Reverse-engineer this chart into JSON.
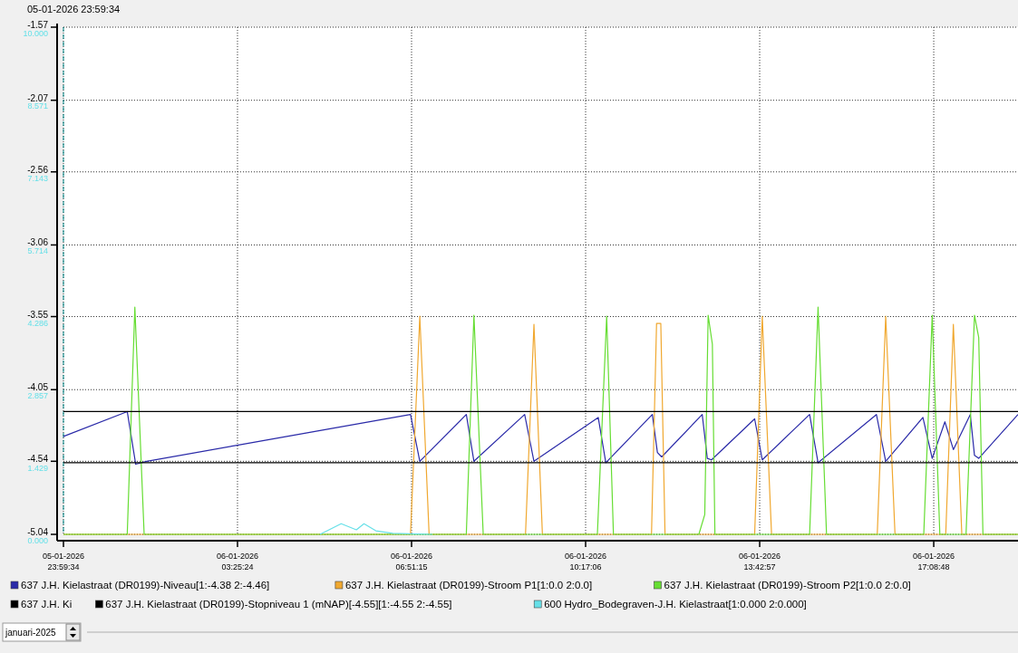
{
  "chart_data": {
    "type": "line",
    "xlim": [
      "2026-01-05T23:59:34",
      "2026-01-06T18:48:27"
    ],
    "xticks": [
      {
        "value": "2026-01-05T23:59:34",
        "label": "05-01-2026\n23:59:34"
      },
      {
        "value": "2026-01-06T03:25:24",
        "label": "06-01-2026\n03:25:24"
      },
      {
        "value": "2026-01-06T06:51:15",
        "label": "06-01-2026\n06:51:15"
      },
      {
        "value": "2026-01-06T10:17:06",
        "label": "06-01-2026\n10:17:06"
      },
      {
        "value": "2026-01-06T13:42:57",
        "label": "06-01-2026\n13:42:57"
      },
      {
        "value": "2026-01-06T17:08:48",
        "label": "06-01-2026\n17:08:48"
      }
    ],
    "ylim": [
      -5.04,
      -1.57
    ],
    "yticks": [
      -5.04,
      -4.54,
      -4.05,
      -3.55,
      -3.06,
      -2.56,
      -2.07,
      -1.57
    ],
    "y2lim": [
      0,
      10
    ],
    "y2ticks": [
      {
        "value": 0,
        "label": "0.000"
      },
      {
        "value": 1.429,
        "label": "1.429"
      },
      {
        "value": 2.857,
        "label": "2.857"
      },
      {
        "value": 4.286,
        "label": "4.286"
      },
      {
        "value": 5.714,
        "label": "5.714"
      },
      {
        "value": 7.143,
        "label": "7.143"
      },
      {
        "value": 8.571,
        "label": "8.571"
      },
      {
        "value": 10,
        "label": "10.000"
      }
    ],
    "grid": true,
    "legend": "bottom",
    "ref_lines": [
      {
        "axis": "x",
        "value": "2026-01-05T23:59:34",
        "label": "05-01-2026 23:59:34",
        "color": "#008b8b",
        "line_style": "dashed"
      }
    ],
    "annotations": [
      "januari-2025"
    ],
    "series": [
      {
        "name": "637 J.H. Kielastraat (DR0199)-Niveau[1:-4.38 2:-4.46]",
        "color": "#2a2aa8",
        "x": [
          "2026-01-05T23:59:34",
          "2026-01-06T01:15:00",
          "2026-01-06T01:25:00",
          "2026-01-06T01:38:00",
          "2026-01-06T03:25:00",
          "2026-01-06T06:50:00",
          "2026-01-06T07:01:00",
          "2026-01-06T07:56:00",
          "2026-01-06T08:05:00",
          "2026-01-06T09:05:00",
          "2026-01-06T09:16:00",
          "2026-01-06T10:32:00",
          "2026-01-06T10:41:00",
          "2026-01-06T11:36:00",
          "2026-01-06T11:42:00",
          "2026-01-06T11:47:00",
          "2026-01-06T12:35:00",
          "2026-01-06T12:41:00",
          "2026-01-06T12:46:00",
          "2026-01-06T13:37:00",
          "2026-01-06T13:46:00",
          "2026-01-06T14:42:00",
          "2026-01-06T14:52:00",
          "2026-01-06T16:01:00",
          "2026-01-06T16:12:00",
          "2026-01-06T16:56:00",
          "2026-01-06T17:07:00",
          "2026-01-06T17:22:00",
          "2026-01-06T17:32:00",
          "2026-01-06T17:52:00",
          "2026-01-06T17:57:00",
          "2026-01-06T18:02:00",
          "2026-01-06T18:48:27"
        ],
        "values": [
          -4.37,
          -4.2,
          -4.56,
          -4.54,
          -4.43,
          -4.22,
          -4.54,
          -4.22,
          -4.54,
          -4.22,
          -4.54,
          -4.24,
          -4.55,
          -4.22,
          -4.48,
          -4.51,
          -4.22,
          -4.52,
          -4.53,
          -4.25,
          -4.53,
          -4.22,
          -4.55,
          -4.22,
          -4.54,
          -4.24,
          -4.52,
          -4.27,
          -4.46,
          -4.22,
          -4.5,
          -4.52,
          -4.22
        ]
      },
      {
        "name": "637 J.H. Kielastraat (DR0199)-Stroom P1[1:0.0 2:0.0]",
        "color": "#f0a830",
        "axis": "y2",
        "x": [
          "2026-01-05T23:59:34",
          "2026-01-06T06:50:00",
          "2026-01-06T07:01:00",
          "2026-01-06T07:12:00",
          "2026-01-06T09:06:00",
          "2026-01-06T09:16:00",
          "2026-01-06T09:26:00",
          "2026-01-06T11:35:00",
          "2026-01-06T11:41:00",
          "2026-01-06T11:46:00",
          "2026-01-06T11:51:00",
          "2026-01-06T13:37:00",
          "2026-01-06T13:46:00",
          "2026-01-06T13:57:00",
          "2026-01-06T16:02:00",
          "2026-01-06T16:12:00",
          "2026-01-06T16:23:00",
          "2026-01-06T17:23:00",
          "2026-01-06T17:32:00",
          "2026-01-06T17:42:00",
          "2026-01-06T18:48:27"
        ],
        "values": [
          0,
          0,
          4.3,
          0,
          0,
          4.14,
          0,
          0,
          4.16,
          4.16,
          0,
          0,
          4.3,
          0,
          0,
          4.3,
          0,
          0,
          4.14,
          0,
          0
        ]
      },
      {
        "name": "637 J.H. Kielastraat (DR0199)-Stroom P2[1:0.0 2:0.0]",
        "color": "#66dd33",
        "axis": "y2",
        "x": [
          "2026-01-05T23:59:34",
          "2026-01-06T01:15:00",
          "2026-01-06T01:24:00",
          "2026-01-06T01:35:00",
          "2026-01-06T07:56:00",
          "2026-01-06T08:05:00",
          "2026-01-06T08:16:00",
          "2026-01-06T10:31:00",
          "2026-01-06T10:42:00",
          "2026-01-06T10:50:00",
          "2026-01-06T12:31:00",
          "2026-01-06T12:38:00",
          "2026-01-06T12:42:00",
          "2026-01-06T12:47:00",
          "2026-01-06T12:50:00",
          "2026-01-06T14:42:00",
          "2026-01-06T14:52:00",
          "2026-01-06T15:02:00",
          "2026-01-06T16:57:00",
          "2026-01-06T17:07:00",
          "2026-01-06T17:16:00",
          "2026-01-06T17:47:00",
          "2026-01-06T17:57:00",
          "2026-01-06T18:02:00",
          "2026-01-06T18:07:00",
          "2026-01-06T18:48:27"
        ],
        "values": [
          0,
          0,
          4.48,
          0,
          0,
          4.32,
          0,
          0,
          4.3,
          0,
          0,
          0.39,
          4.32,
          3.75,
          0,
          0,
          4.48,
          0,
          0,
          4.32,
          0,
          0,
          4.32,
          3.88,
          0,
          0
        ]
      },
      {
        "name": "637 J.H. Ki",
        "color": "#000000",
        "x": [
          "2026-01-05T23:59:34",
          "2026-01-06T18:48:27"
        ],
        "values": [
          -4.2,
          -4.2
        ]
      },
      {
        "name": "637 J.H. Kielastraat (DR0199)-Stopniveau 1 (mNAP)[-4.55][1:-4.55 2:-4.55]",
        "color": "#000000",
        "x": [
          "2026-01-05T23:59:34",
          "2026-01-06T18:48:27"
        ],
        "values": [
          -4.55,
          -4.55
        ]
      },
      {
        "name": "600 Hydro_Bodegraven-J.H. Kielastraat[1:0.000 2:0.000]",
        "color": "#66e0e8",
        "axis": "y2",
        "x": [
          "2026-01-06T05:03:00",
          "2026-01-06T05:28:00",
          "2026-01-06T05:46:00",
          "2026-01-06T05:55:00",
          "2026-01-06T06:09:00",
          "2026-01-06T06:29:00",
          "2026-01-06T07:16:00"
        ],
        "values": [
          0,
          0.21,
          0.09,
          0.21,
          0.07,
          0.02,
          0
        ]
      }
    ]
  }
}
